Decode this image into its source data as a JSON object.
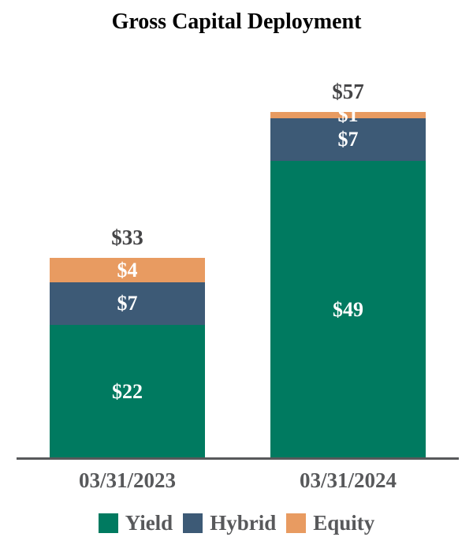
{
  "colors": {
    "yield": "#007A60",
    "hybrid": "#3D5A76",
    "equity": "#E89B61",
    "axis": "#58595B",
    "category_label": "#58595B",
    "total_label": "#454547",
    "segment_label": "#FFFFFF",
    "title_text": "#000000",
    "background": "#FFFFFF"
  },
  "chart_data": {
    "type": "bar",
    "stacked": true,
    "title": "Gross Capital Deployment",
    "value_prefix": "$",
    "categories": [
      "03/31/2023",
      "03/31/2024"
    ],
    "series": [
      {
        "name": "Yield",
        "color": "#007A60",
        "values": [
          22,
          49
        ]
      },
      {
        "name": "Hybrid",
        "color": "#3D5A76",
        "values": [
          7,
          7
        ]
      },
      {
        "name": "Equity",
        "color": "#E89B61",
        "values": [
          4,
          1
        ]
      }
    ],
    "totals": [
      33,
      57
    ],
    "total_labels": [
      "$33",
      "$57"
    ],
    "segment_labels": [
      [
        "$22",
        "$7",
        "$4"
      ],
      [
        "$49",
        "$7",
        "$1"
      ]
    ],
    "legend": [
      "Yield",
      "Hybrid",
      "Equity"
    ],
    "legend_position": "bottom",
    "xlabel": "",
    "ylabel": "",
    "y_axis_visible": false,
    "grid": false
  }
}
